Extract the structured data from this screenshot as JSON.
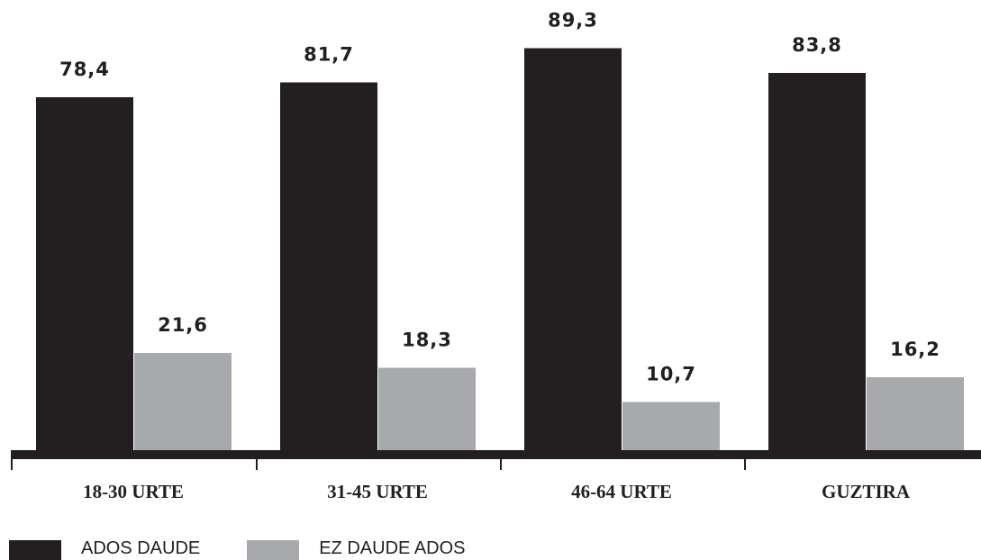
{
  "chart_data": {
    "type": "bar",
    "categories": [
      "18-30 URTE",
      "31-45 URTE",
      "46-64 URTE",
      "GUZTIRA"
    ],
    "series": [
      {
        "name": "ADOS DAUDE",
        "values": [
          78.4,
          81.7,
          89.3,
          83.8
        ],
        "labels": [
          "78,4",
          "81,7",
          "89,3",
          "83,8"
        ],
        "color": "#231f20"
      },
      {
        "name": "EZ DAUDE ADOS",
        "values": [
          21.6,
          18.3,
          10.7,
          16.2
        ],
        "labels": [
          "21,6",
          "18,3",
          "10,7",
          "16,2"
        ],
        "color": "#a7a9ac"
      }
    ],
    "ylim": [
      0,
      100
    ],
    "grid": false,
    "legend_position": "bottom-left",
    "axis_color": "#231f20"
  }
}
